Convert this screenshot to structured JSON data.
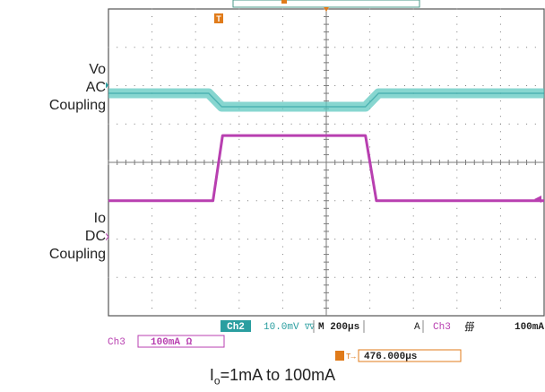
{
  "labels": {
    "ch2": [
      "Vo",
      "AC",
      "Coupling"
    ],
    "ch3": [
      "Io",
      "DC",
      "Coupling"
    ]
  },
  "markers": {
    "ch2": "2",
    "ch3": "3",
    "trigger": "T"
  },
  "status": {
    "ch2_tag": "Ch2",
    "ch2_scale": "10.0mV",
    "ch2_bw": "∇∇",
    "timebase": "M 200µs",
    "trig_mode": "A",
    "trig_source": "Ch3",
    "trig_slope": "∰",
    "trig_level": "100mA",
    "ch3_tag": "Ch3",
    "ch3_scale": "100mA Ω",
    "trig_pos_icon": "T→",
    "trig_pos": "476.000µs"
  },
  "caption": {
    "main": "I",
    "sub": "o",
    "rest": "=1mA to 100mA"
  },
  "colors": {
    "ch2": "#5fc8c0",
    "ch3": "#b83fb0",
    "trigger": "#e07b1a",
    "grid": "#7a7a7a",
    "frame": "#555555"
  },
  "chart_data": {
    "type": "line",
    "x_unit": "div",
    "x_range": [
      0,
      10
    ],
    "series": [
      {
        "name": "Ch2",
        "x": [
          0,
          2.3,
          2.6,
          5.9,
          6.2,
          10
        ],
        "values": [
          1.8,
          1.8,
          1.45,
          1.45,
          1.8,
          1.8
        ]
      },
      {
        "name": "Ch3",
        "x": [
          0,
          2.4,
          2.62,
          5.9,
          6.15,
          10
        ],
        "values": [
          -1.0,
          -1.0,
          0.7,
          0.7,
          -1.0,
          -1.0
        ]
      }
    ]
  }
}
